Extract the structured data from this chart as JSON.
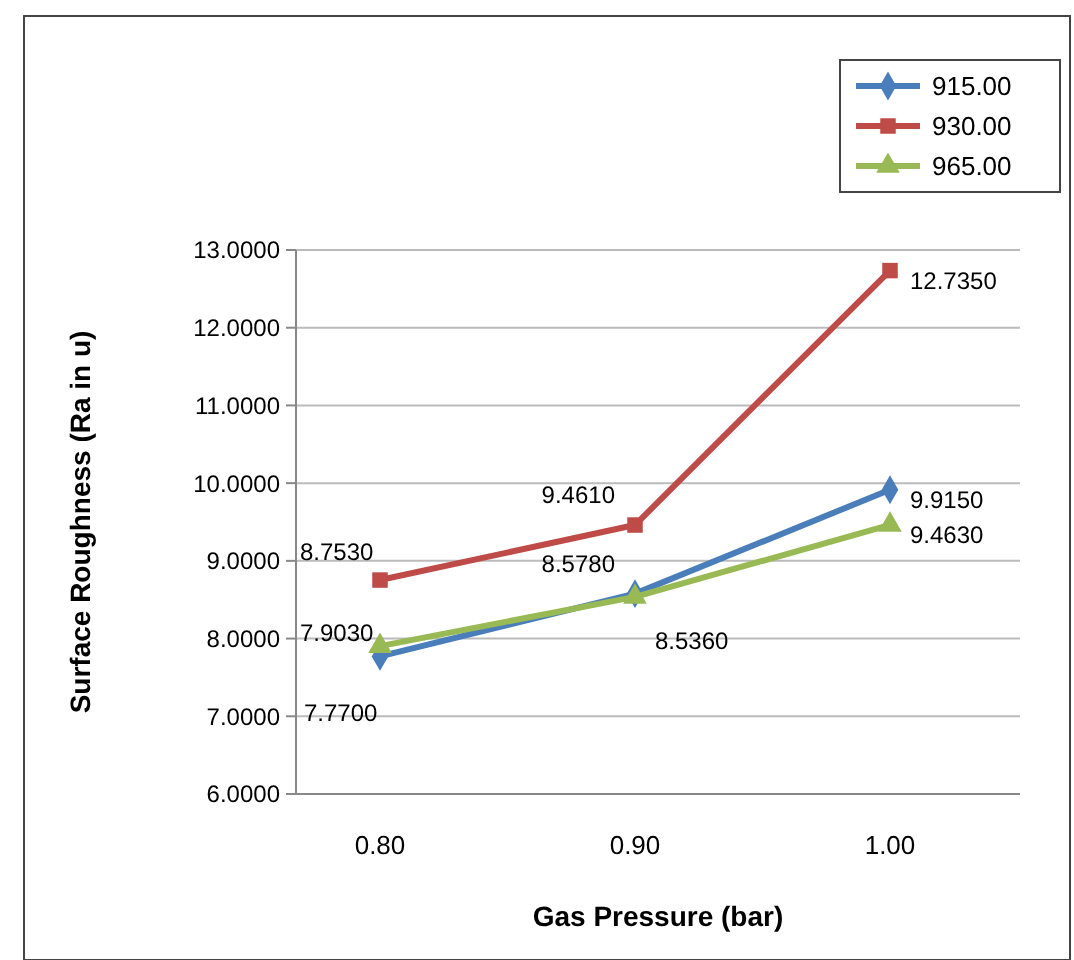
{
  "chart_data": {
    "type": "line",
    "xlabel": "Gas Pressure (bar)",
    "ylabel": "Surface Roughness (Ra in u)",
    "categories": [
      "0.80",
      "0.90",
      "1.00"
    ],
    "ylim": [
      6,
      13
    ],
    "yticks": [
      {
        "value": 6,
        "label": "6.0000"
      },
      {
        "value": 7,
        "label": "7.0000"
      },
      {
        "value": 8,
        "label": "8.0000"
      },
      {
        "value": 9,
        "label": "9.0000"
      },
      {
        "value": 10,
        "label": "10.0000"
      },
      {
        "value": 11,
        "label": "11.0000"
      },
      {
        "value": 12,
        "label": "12.0000"
      },
      {
        "value": 13,
        "label": "13.0000"
      }
    ],
    "grid": "y",
    "legend": "top right",
    "series": [
      {
        "name": "915.00",
        "color": "#4a7ebb",
        "marker": "diamond",
        "values": [
          7.77,
          8.578,
          9.915
        ],
        "value_labels": [
          "7.7700",
          "8.5780",
          "9.9150"
        ]
      },
      {
        "name": "930.00",
        "color": "#be4b48",
        "marker": "square",
        "values": [
          8.753,
          9.461,
          12.735
        ],
        "value_labels": [
          "8.7530",
          "9.4610",
          "12.7350"
        ]
      },
      {
        "name": "965.00",
        "color": "#98b954",
        "marker": "triangle",
        "values": [
          7.903,
          8.536,
          9.463
        ],
        "value_labels": [
          "7.9030",
          "8.5360",
          "9.4630"
        ]
      }
    ]
  }
}
